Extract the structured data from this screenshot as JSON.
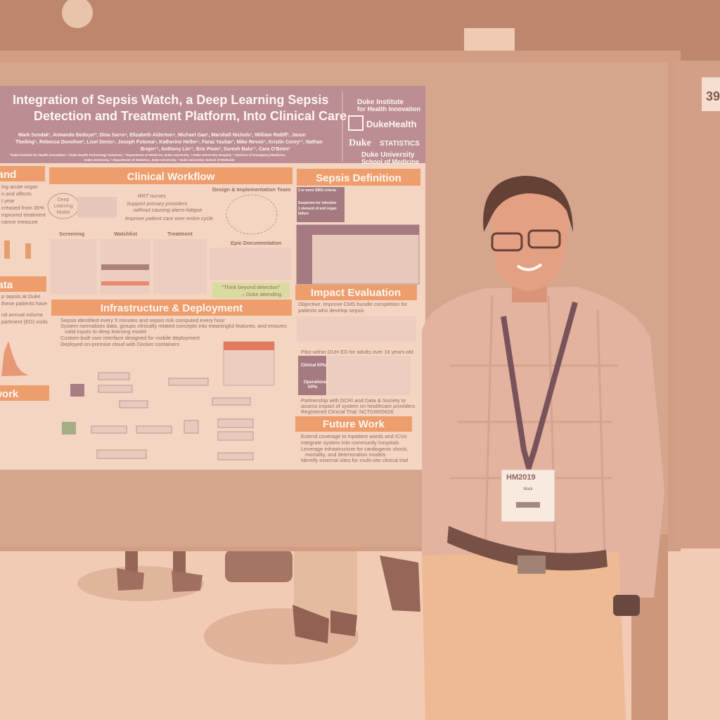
{
  "poster": {
    "title": [
      "Integration of Sepsis Watch, a Deep Learning Sepsis",
      "Detection and Treatment Platform, Into Clinical Care"
    ],
    "authors": [
      "Mark Sendak¹, Armando Bedoya²³, Dina Sarro⁴, Elizabeth Alderton⁴, Michael Gao¹, Marshall Nichols¹, William Ratliff¹, Jason",
      "Theiling⁵, Rebecca Donohoe², Lisel Denis⁵, Joseph Futoma⁶, Katherine Heller⁶, Faraz Yashar¹, Mike Revoir¹, Kristin Corey¹⁷, Nathan",
      "Brajer¹⁷, Anthony Lin¹⁷, Eric Poon³, Suresh Balu¹⁷, Cara O'Brien³"
    ],
    "affiliations": [
      "¹Duke Institute for Health Innovation, ² Duke Health Technology Solutions, ³ Department of Medicine, Duke University, ⁴ Duke University Hospital, ⁵ Division of Emergency Medicine,",
      "Duke University, ⁶ Department of Statistics, Duke University, ⁷ Duke University School of Medicine"
    ],
    "logos": [
      "Duke Institute",
      "for Health Innovation",
      "DukeHealth",
      "Duke",
      "STATISTICS",
      "Duke University",
      "School of Medicine"
    ],
    "left_column": {
      "heading_1": "and",
      "lines_1": [
        "ing acute organ",
        "n and affects",
        "t year",
        "creased from 35%",
        "mproved treatment",
        "nance measure"
      ],
      "heading_2": "Data",
      "lines_2": [
        "p sepsis at Duke",
        "these patients have",
        "nd annual volume",
        "partment (ED) visits"
      ],
      "heading_3": "nework"
    },
    "clinical_workflow": {
      "heading": "Clinical Workflow",
      "team": "Design & Implementation Team",
      "model": [
        "Deep",
        "Learning",
        "Model"
      ],
      "bullets": [
        "RRT nurses",
        "Support primary providers",
        "without causing alarm-fatigue",
        "Improve patient care over entire cycle"
      ],
      "stages": [
        "Screening",
        "Watchlist",
        "Treatment"
      ],
      "epic": "Epic Documentation",
      "quote": [
        "\"Think beyond detection\"",
        "– Duke attending"
      ]
    },
    "sepsis_definition": {
      "heading": "Sepsis Definition",
      "criteria": [
        "2 or more SIRS criteria",
        "Suspicion for infection",
        "1 element of end organ",
        "failure"
      ]
    },
    "infrastructure": {
      "heading": "Infrastructure & Deployment",
      "bullets": [
        "Sepsis identified every 5 minutes and sepsis risk computed every hour",
        "System normalizes data, groups clinically related concepts into meaningful features, and ensures",
        "valid inputs to deep learning model",
        "Custom-built user interface designed for mobile deployment",
        "Deployed on-premise cloud with Docker containers"
      ]
    },
    "impact": {
      "heading": "Impact Evaluation",
      "lines": [
        "Objective: Improve CMS bundle completion for",
        "patients who develop sepsis",
        "Pilot within DUH ED for adults over 18 years-old",
        "Partnership with DCRI and Data & Society to",
        "assess impact of system on healthcare providers",
        "Registered Clinical Trial: NCT03655626"
      ],
      "kpis": [
        "Clinical KPIs",
        "Operational",
        "KPIs"
      ]
    },
    "future_work": {
      "heading": "Future Work",
      "bullets": [
        "Extend coverage to inpatient wards and ICUs",
        "Integrate system into community hospitals",
        "Leverage infrastructure for cardiogenic shock,",
        "mortality, and deterioration models",
        "Identify external sites for multi-site clinical trial"
      ]
    }
  },
  "badge": {
    "event": "HM2019",
    "name": "Mark"
  },
  "board_number": "39"
}
